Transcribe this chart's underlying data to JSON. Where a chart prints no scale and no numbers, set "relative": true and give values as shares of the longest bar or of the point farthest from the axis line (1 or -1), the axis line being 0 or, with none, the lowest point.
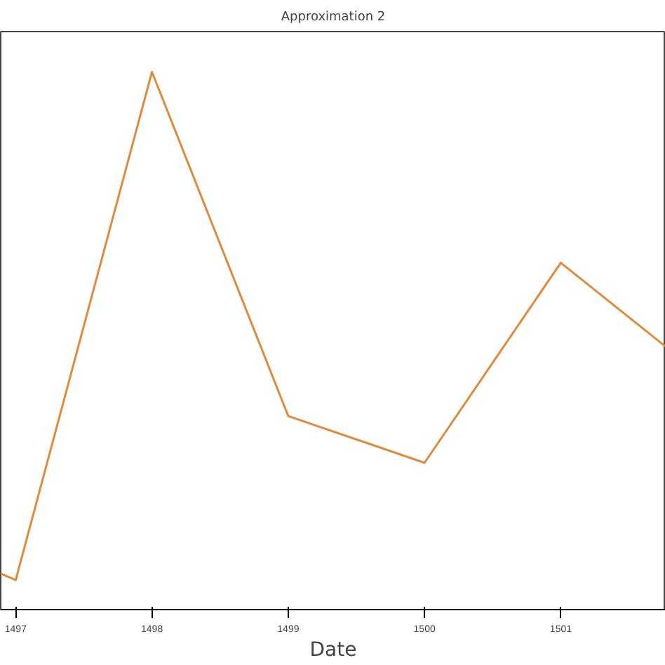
{
  "chart_data": {
    "type": "line",
    "title": "Approximation 2",
    "xlabel": "Date",
    "relative": true,
    "x": [
      1496.89,
      1497,
      1498,
      1499,
      1500,
      1501,
      1501.77
    ],
    "series": [
      {
        "color": "#e08a3c",
        "values": [
          0.067,
          0.055,
          1.0,
          0.36,
          0.273,
          0.645,
          0.489
        ]
      }
    ],
    "xlim": [
      1496.89,
      1501.77
    ],
    "xticks": [
      1497,
      1498,
      1499,
      1500,
      1501
    ],
    "line_style": "solid"
  }
}
